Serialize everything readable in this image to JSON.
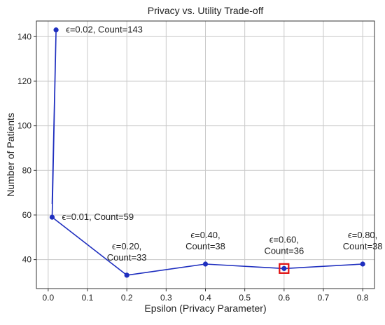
{
  "chart_data": {
    "type": "line",
    "title": "Privacy vs. Utility Trade-off",
    "xlabel": "Epsilon (Privacy Parameter)",
    "ylabel": "Number of Patients",
    "xlim": [
      -0.03,
      0.83
    ],
    "ylim": [
      27,
      147
    ],
    "grid": true,
    "x_ticks": [
      0.0,
      0.1,
      0.2,
      0.3,
      0.4,
      0.5,
      0.6,
      0.7,
      0.8
    ],
    "x_tick_labels": [
      "0.0",
      "0.1",
      "0.2",
      "0.3",
      "0.4",
      "0.5",
      "0.6",
      "0.7",
      "0.8"
    ],
    "y_ticks": [
      40,
      60,
      80,
      100,
      120,
      140
    ],
    "y_tick_labels": [
      "40",
      "60",
      "80",
      "100",
      "120",
      "140"
    ],
    "series": [
      {
        "color": "#1f2fbf",
        "points": [
          {
            "x": 0.01,
            "y": 65
          },
          {
            "x": 0.02,
            "y": 143
          },
          {
            "x": 0.01,
            "y": 59
          },
          {
            "x": 0.2,
            "y": 33
          },
          {
            "x": 0.4,
            "y": 38
          },
          {
            "x": 0.6,
            "y": 36
          },
          {
            "x": 0.8,
            "y": 38
          }
        ],
        "markers": [
          {
            "x": 0.02,
            "y": 143
          },
          {
            "x": 0.01,
            "y": 59
          },
          {
            "x": 0.2,
            "y": 33
          },
          {
            "x": 0.4,
            "y": 38
          },
          {
            "x": 0.6,
            "y": 36
          },
          {
            "x": 0.8,
            "y": 38
          }
        ]
      }
    ],
    "highlight": {
      "x": 0.6,
      "y": 36,
      "color": "#e01010"
    },
    "annotations": [
      {
        "lines": [
          "ϵ=0.02, Count=143"
        ],
        "x": 0.02,
        "y": 143,
        "placement": "right"
      },
      {
        "lines": [
          "ϵ=0.01, Count=59"
        ],
        "x": 0.01,
        "y": 59,
        "placement": "right"
      },
      {
        "lines": [
          "ϵ=0.20,",
          "Count=33"
        ],
        "x": 0.2,
        "y": 33,
        "placement": "above"
      },
      {
        "lines": [
          "ϵ=0.40,",
          "Count=38"
        ],
        "x": 0.4,
        "y": 38,
        "placement": "above"
      },
      {
        "lines": [
          "ϵ=0.60,",
          "Count=36"
        ],
        "x": 0.6,
        "y": 36,
        "placement": "above"
      },
      {
        "lines": [
          "ϵ=0.80,",
          "Count=38"
        ],
        "x": 0.8,
        "y": 38,
        "placement": "above"
      }
    ]
  }
}
